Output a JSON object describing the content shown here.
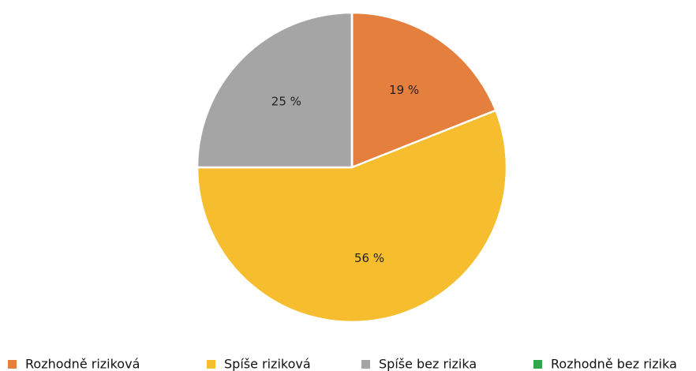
{
  "chart_data": {
    "type": "pie",
    "categories": [
      "Rozhodně riziková",
      "Spíše riziková",
      "Spíše bez rizika",
      "Rozhodně bez rizika"
    ],
    "values": [
      19,
      56,
      25,
      0
    ],
    "value_labels": [
      "19 %",
      "56 %",
      "25 %",
      null
    ],
    "colors": [
      "#e47f3e",
      "#f6be2e",
      "#a5a5a5",
      "#2ea84a"
    ]
  }
}
